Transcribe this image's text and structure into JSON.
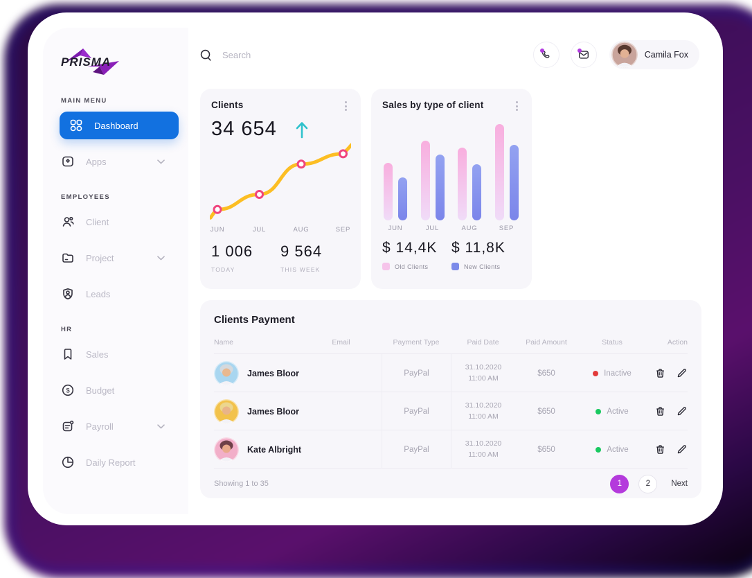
{
  "brand": {
    "name": "PRISMA",
    "logo_color": "#8a1fb8",
    "text_color": "#201e2b"
  },
  "topbar": {
    "search_placeholder": "Search",
    "user_name": "Camila Fox"
  },
  "sidebar": {
    "sections": [
      {
        "label": "MAIN MENU",
        "items": [
          {
            "label": "Dashboard",
            "icon": "grid-icon",
            "active": true,
            "chevron": false
          },
          {
            "label": "Apps",
            "icon": "apps-icon",
            "active": false,
            "chevron": true
          }
        ]
      },
      {
        "label": "EMPLOYEES",
        "items": [
          {
            "label": "Client",
            "icon": "people-icon",
            "active": false,
            "chevron": false
          },
          {
            "label": "Project",
            "icon": "folder-icon",
            "active": false,
            "chevron": true
          },
          {
            "label": "Leads",
            "icon": "person-badge-icon",
            "active": false,
            "chevron": false
          }
        ]
      },
      {
        "label": "HR",
        "items": [
          {
            "label": "Sales",
            "icon": "bookmark-icon",
            "active": false,
            "chevron": false
          },
          {
            "label": "Budget",
            "icon": "dollar-circle-icon",
            "active": false,
            "chevron": false
          },
          {
            "label": "Payroll",
            "icon": "clipboard-icon",
            "active": false,
            "chevron": true
          },
          {
            "label": "Daily Report",
            "icon": "pie-icon",
            "active": false,
            "chevron": false
          }
        ]
      }
    ]
  },
  "clients_card": {
    "title": "Clients",
    "total": "34 654",
    "trend": "up",
    "trend_color": "#2fc2cc",
    "today_value": "1 006",
    "today_label": "TODAY",
    "week_value": "9 564",
    "week_label": "THIS WEEK"
  },
  "sales_card": {
    "title": "Sales by type of client",
    "old_value": "$ 14,4K",
    "old_label": "Old Clients",
    "old_color": "#f6c4ea",
    "new_value": "$ 11,8K",
    "new_label": "New Clients",
    "new_color": "#7b8ae9"
  },
  "chart_data": [
    {
      "type": "line",
      "title": "Clients",
      "x": [
        "JUN",
        "JUL",
        "AUG",
        "SEP"
      ],
      "values": [
        11,
        30,
        68,
        81
      ],
      "ylim": [
        0,
        100
      ],
      "line_color": "#fcbe23",
      "marker_color": "#f0457e",
      "grid": false,
      "legend": "none"
    },
    {
      "type": "bar",
      "title": "Sales by type of client",
      "categories": [
        "JUN",
        "JUL",
        "AUG",
        "SEP"
      ],
      "series": [
        {
          "name": "Old Clients",
          "color": "#f8aede",
          "values": [
            59,
            82,
            75,
            99
          ]
        },
        {
          "name": "New Clients",
          "color": "#7b85ea",
          "values": [
            44,
            68,
            58,
            78
          ]
        }
      ],
      "ylim": [
        0,
        100
      ],
      "grid": false,
      "legend": "bottom"
    }
  ],
  "table": {
    "title": "Clients Payment",
    "columns": [
      "Name",
      "Email",
      "Payment Type",
      "Paid Date",
      "Paid Amount",
      "Status",
      "Action"
    ],
    "rows": [
      {
        "name": "James Bloor",
        "payment_type": "PayPal",
        "paid_date": "31.10.2020",
        "paid_time": "11:00 AM",
        "amount": "$650",
        "status": "Inactive",
        "status_color": "#e23a3a",
        "avatar": {
          "bg": "#a9d6f0",
          "hair": "#d4d9de",
          "skin": "#e9b88f"
        }
      },
      {
        "name": "James Bloor",
        "payment_type": "PayPal",
        "paid_date": "31.10.2020",
        "paid_time": "11:00 AM",
        "amount": "$650",
        "status": "Active",
        "status_color": "#19c960",
        "avatar": {
          "bg": "#f2c24c",
          "hair": "#ecd68e",
          "skin": "#e9b489"
        }
      },
      {
        "name": "Kate Albright",
        "payment_type": "PayPal",
        "paid_date": "31.10.2020",
        "paid_time": "11:00 AM",
        "amount": "$650",
        "status": "Active",
        "status_color": "#19c960",
        "avatar": {
          "bg": "#f2afc9",
          "hair": "#6e4048",
          "skin": "#e9a98b"
        }
      }
    ],
    "footer": {
      "showing": "Showing 1 to 35",
      "pages": [
        "1",
        "2"
      ],
      "active_page": "1",
      "next_label": "Next"
    }
  },
  "user_avatar": {
    "bg": "#c9a49c",
    "hair": "#57382e",
    "skin": "#e2b194"
  }
}
